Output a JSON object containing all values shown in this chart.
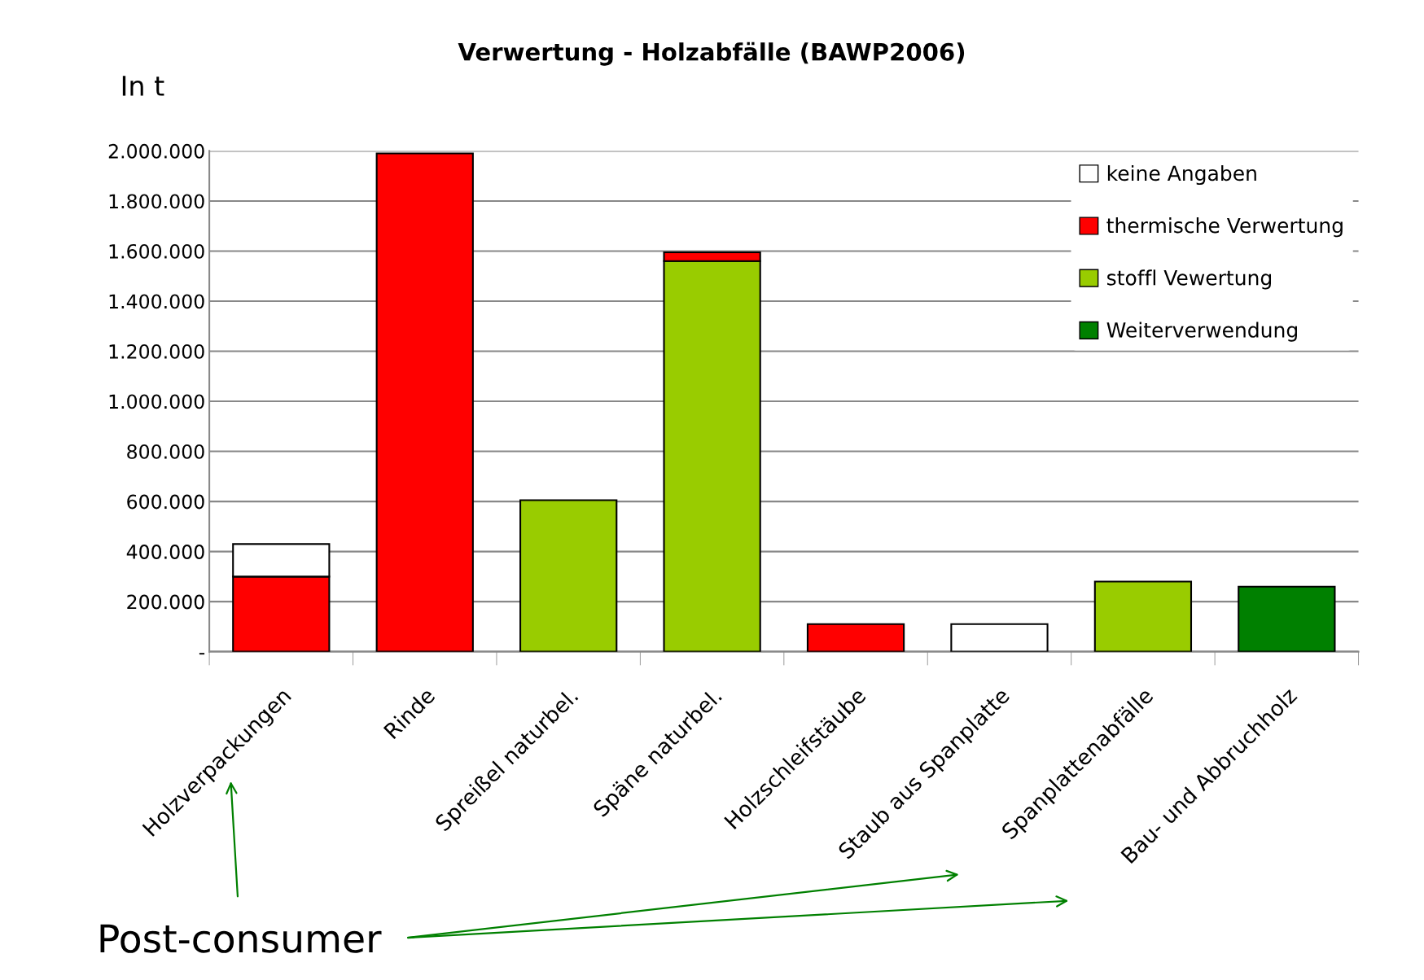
{
  "chart_data": {
    "type": "bar",
    "stacked": true,
    "title": "Verwertung - Holzabfälle (BAWP2006)",
    "ylabel": "In t",
    "categories": [
      "Holzverpackungen",
      "Rinde",
      "Spreißel naturbel.",
      "Späne naturbel.",
      "Holzschleifstäube",
      "Staub aus Spanplatte",
      "Spanplattenabfälle",
      "Bau- und Abbruchholz"
    ],
    "series": [
      {
        "name": "Weiterverwendung",
        "color": "#008000",
        "values": [
          null,
          null,
          null,
          null,
          null,
          null,
          null,
          260000
        ]
      },
      {
        "name": "stoffl Vewertung",
        "color": "#99cc00",
        "values": [
          null,
          null,
          605000,
          1560000,
          null,
          null,
          280000,
          null
        ]
      },
      {
        "name": "thermische Verwertung",
        "color": "#ff0000",
        "values": [
          300000,
          1990000,
          null,
          35000,
          110000,
          null,
          null,
          null
        ]
      },
      {
        "name": "keine Angaben",
        "color": "#ffffff",
        "values": [
          130000,
          null,
          null,
          null,
          null,
          110000,
          null,
          null
        ]
      }
    ],
    "ylim": [
      0,
      2000000
    ],
    "yticks": [
      {
        "value": 0,
        "label": "-"
      },
      {
        "value": 200000,
        "label": "200.000"
      },
      {
        "value": 400000,
        "label": "400.000"
      },
      {
        "value": 600000,
        "label": "600.000"
      },
      {
        "value": 800000,
        "label": "800.000"
      },
      {
        "value": 1000000,
        "label": "1.000.000"
      },
      {
        "value": 1200000,
        "label": "1.200.000"
      },
      {
        "value": 1400000,
        "label": "1.400.000"
      },
      {
        "value": 1600000,
        "label": "1.600.000"
      },
      {
        "value": 1800000,
        "label": "1.800.000"
      },
      {
        "value": 2000000,
        "label": "2.000.000"
      }
    ],
    "grid": "y",
    "legend": "top right",
    "annotations": [
      "Post-consumer"
    ]
  }
}
